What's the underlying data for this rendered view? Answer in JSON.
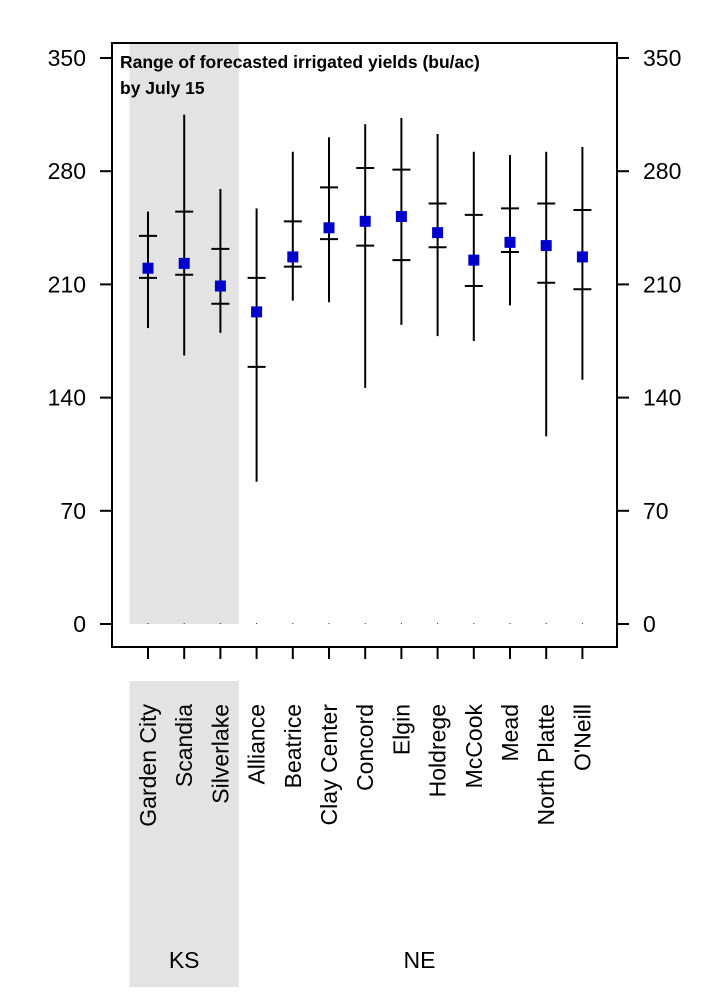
{
  "chart_data": {
    "type": "errorbar",
    "title": "Range of forecasted irrigated yields (bu/ac)",
    "subtitle": "by July 15",
    "ylim": [
      0,
      350
    ],
    "yticks": [
      0,
      70,
      140,
      210,
      280,
      350
    ],
    "ytick_labels": [
      "0",
      "70",
      "140",
      "210",
      "280",
      "350"
    ],
    "grid": false,
    "categories": [
      "Garden City",
      "Scandia",
      "Silverlake",
      "Alliance",
      "Beatrice",
      "Clay Center",
      "Concord",
      "Elgin",
      "Holdrege",
      "McCook",
      "Mead",
      "North Platte",
      "O'Neill"
    ],
    "groups": [
      {
        "label": "KS",
        "count": 3,
        "shaded": true
      },
      {
        "label": "NE",
        "count": 10,
        "shaded": false
      }
    ],
    "series": [
      {
        "min": [
          183,
          166,
          180,
          88,
          200,
          199,
          146,
          185,
          178,
          175,
          197,
          116,
          151
        ],
        "lower": [
          214,
          216,
          198,
          159,
          221,
          238,
          234,
          225,
          233,
          209,
          230,
          211,
          207
        ],
        "median": [
          220,
          223,
          209,
          193,
          227,
          245,
          249,
          252,
          242,
          225,
          236,
          234,
          227
        ],
        "upper": [
          240,
          255,
          232,
          214,
          249,
          270,
          282,
          281,
          260,
          253,
          257,
          260,
          256
        ],
        "max": [
          255,
          315,
          269,
          257,
          292,
          301,
          309,
          313,
          303,
          292,
          290,
          292,
          295
        ]
      }
    ],
    "colors": {
      "median_marker": "#0000cc",
      "shade": "#e3e3e3",
      "line": "#000000"
    }
  }
}
